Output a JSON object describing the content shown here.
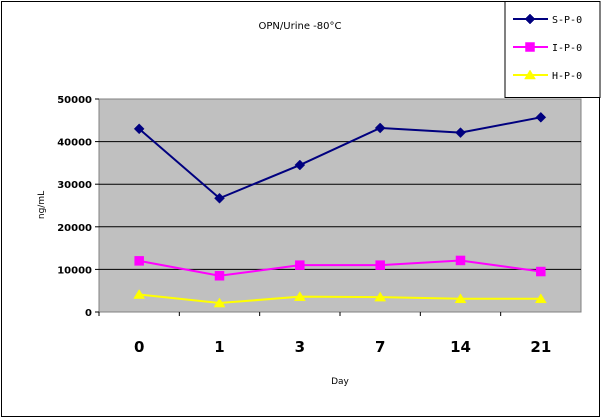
{
  "chart_data": {
    "type": "line",
    "title": "OPN/Urine -80°C",
    "xlabel": "Day",
    "ylabel": "ng/mL",
    "categories": [
      "0",
      "1",
      "3",
      "7",
      "14",
      "21"
    ],
    "ylim": [
      0,
      50000
    ],
    "yticks": [
      "0",
      "10000",
      "20000",
      "30000",
      "40000",
      "50000"
    ],
    "grid": true,
    "legend_position": "top-right",
    "series": [
      {
        "name": "S-P-0",
        "values": [
          43000,
          26700,
          34500,
          43200,
          42100,
          45700
        ],
        "color": "#00007F",
        "marker": "diamond"
      },
      {
        "name": "I-P-0",
        "values": [
          12000,
          8500,
          11000,
          11000,
          12100,
          9500
        ],
        "color": "#FF00FF",
        "marker": "square"
      },
      {
        "name": "H-P-0",
        "values": [
          4100,
          2100,
          3600,
          3500,
          3100,
          3100
        ],
        "color": "#FFFF00",
        "marker": "triangle"
      }
    ]
  }
}
